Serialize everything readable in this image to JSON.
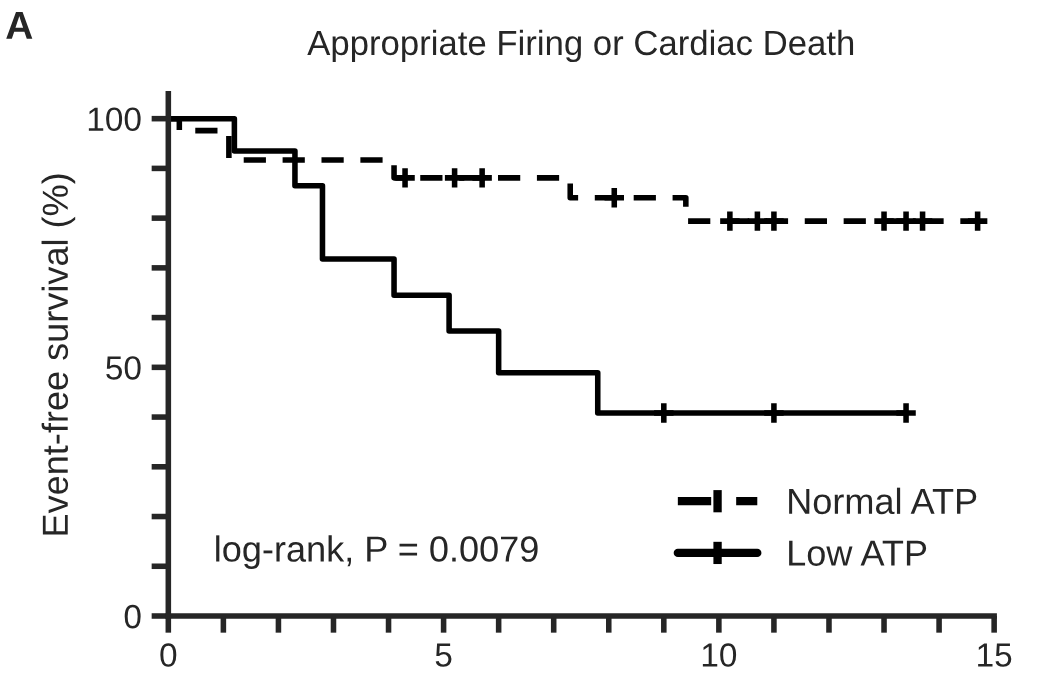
{
  "chart_data": {
    "type": "step",
    "title": "Appropriate Firing or Cardiac Death",
    "ylabel": "Event-free survival (%)",
    "annotations": [
      "A",
      "log-rank, P = 0.0079"
    ],
    "series": [
      {
        "name": "Normal ATP",
        "color": "#000000",
        "line_style": "dashed",
        "x": [
          0,
          0.2,
          1.1,
          4.1,
          7.3,
          9.4,
          14.7
        ],
        "values": [
          100,
          97.6,
          91.7,
          88.1,
          84.1,
          79.4,
          79.4
        ]
      },
      {
        "name": "Low ATP",
        "color": "#000000",
        "line_style": "solid",
        "x": [
          0,
          1.2,
          2.3,
          2.8,
          4.1,
          5.1,
          6.0,
          7.8,
          13.4
        ],
        "values": [
          100,
          93.5,
          86.5,
          71.8,
          64.5,
          57.3,
          48.9,
          40.8,
          40.8
        ]
      },
      {
        "type": "scatter",
        "marker": "cross",
        "color": "#000000",
        "x": [
          4.3,
          5.2,
          5.7,
          8.1,
          10.2,
          10.7,
          11.0,
          13.0,
          13.4,
          13.7,
          14.7
        ],
        "values": [
          88.1,
          88.1,
          88.1,
          84.1,
          79.4,
          79.4,
          79.4,
          79.4,
          79.4,
          79.4,
          79.4
        ]
      },
      {
        "type": "scatter",
        "marker": "cross",
        "color": "#000000",
        "x": [
          9.0,
          11.0,
          13.4
        ],
        "values": [
          40.8,
          40.8,
          40.8
        ]
      }
    ],
    "xlim": [
      0,
      15
    ],
    "xticks": [
      0,
      {
        "value": 1,
        "label": null
      },
      {
        "value": 2,
        "label": null
      },
      {
        "value": 3,
        "label": null
      },
      {
        "value": 4,
        "label": null
      },
      5,
      {
        "value": 6,
        "label": null
      },
      {
        "value": 7,
        "label": null
      },
      {
        "value": 8,
        "label": null
      },
      {
        "value": 9,
        "label": null
      },
      10,
      {
        "value": 11,
        "label": null
      },
      {
        "value": 12,
        "label": null
      },
      {
        "value": 13,
        "label": null
      },
      {
        "value": 14,
        "label": null
      },
      15
    ],
    "ylim": [
      0,
      105
    ],
    "yticks": [
      0,
      {
        "value": 10,
        "label": null
      },
      {
        "value": 20,
        "label": null
      },
      {
        "value": 30,
        "label": null
      },
      {
        "value": 40,
        "label": null
      },
      50,
      {
        "value": 60,
        "label": null
      },
      {
        "value": 70,
        "label": null
      },
      {
        "value": 80,
        "label": null
      },
      {
        "value": 90,
        "label": null
      },
      100
    ],
    "grid": false,
    "legend": "bottom right"
  }
}
